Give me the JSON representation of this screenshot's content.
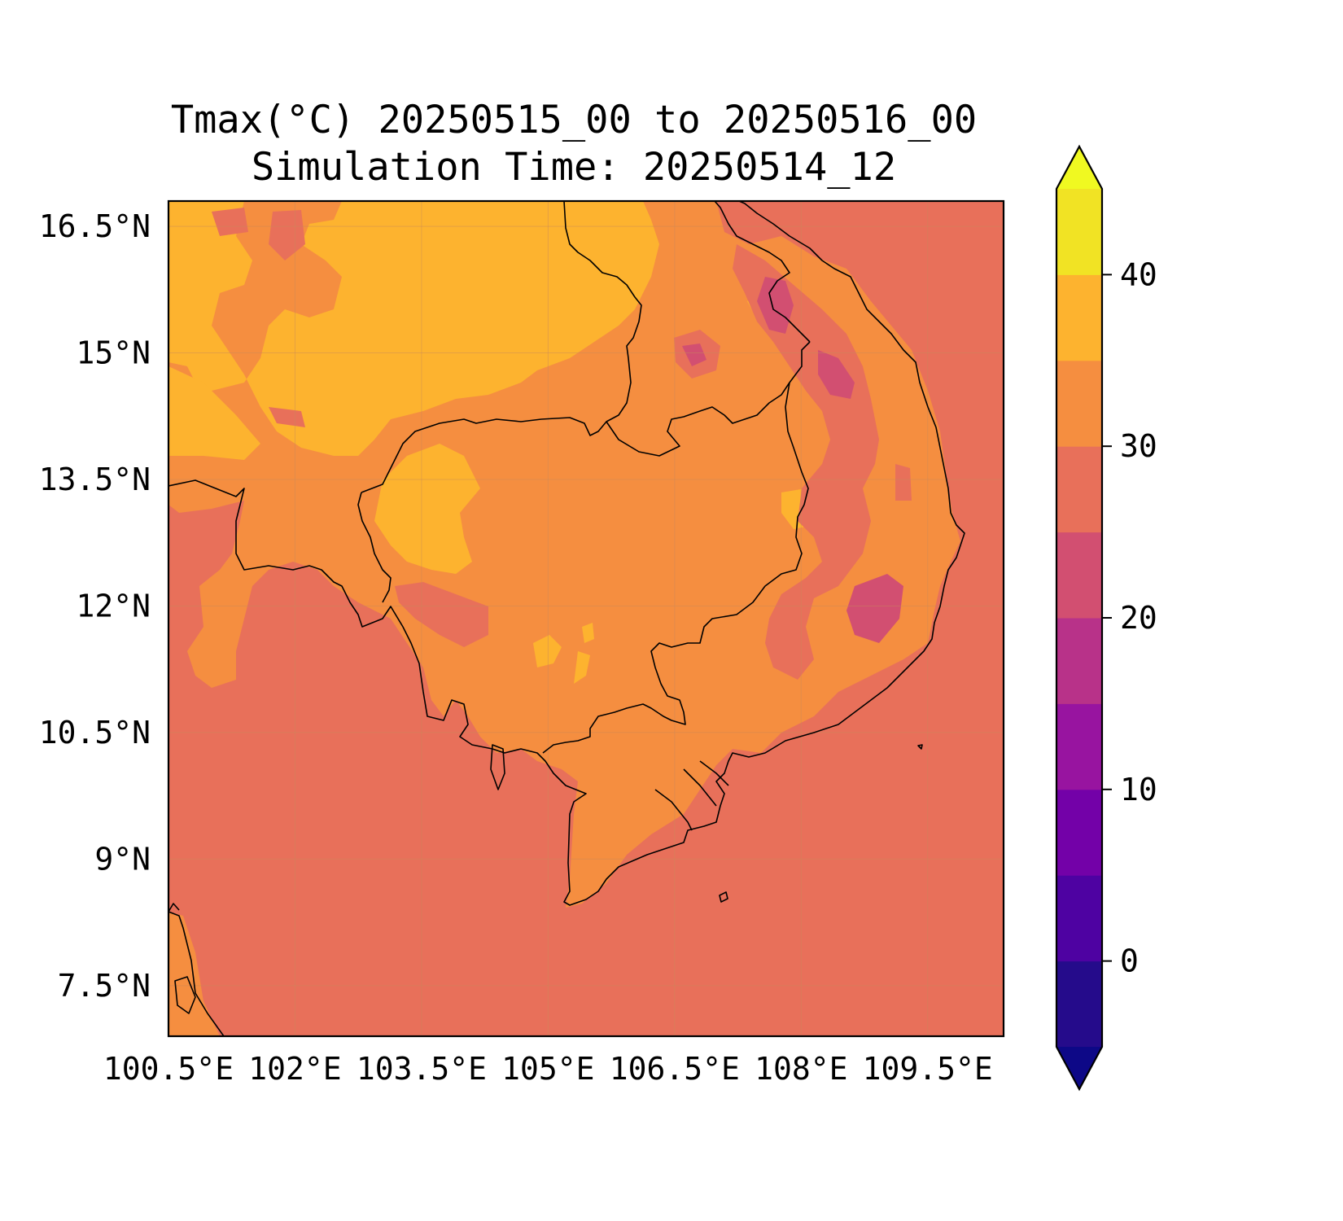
{
  "chart_data": {
    "type": "filled-contour-map",
    "title_line1": "Tmax(°C) 20250515_00 to 20250516_00",
    "title_line2": "Simulation Time: 20250514_12",
    "lon_range": [
      100.5,
      110.4
    ],
    "lat_range": [
      6.9,
      16.8
    ],
    "x_ticks": [
      "100.5°E",
      "102°E",
      "103.5°E",
      "105°E",
      "106.5°E",
      "108°E",
      "109.5°E"
    ],
    "x_tick_values": [
      100.5,
      102,
      103.5,
      105,
      106.5,
      108,
      109.5
    ],
    "y_ticks": [
      "16.5°N",
      "15°N",
      "13.5°N",
      "12°N",
      "10.5°N",
      "9°N",
      "7.5°N"
    ],
    "y_tick_values": [
      16.5,
      15,
      13.5,
      12,
      10.5,
      9,
      7.5
    ],
    "colorbar": {
      "levels": [
        -5,
        0,
        5,
        10,
        15,
        20,
        25,
        30,
        35,
        40,
        45
      ],
      "colors": [
        "#250b8b",
        "#4e02a2",
        "#7301a8",
        "#9814a0",
        "#b83289",
        "#d24f71",
        "#e8705a",
        "#f58e40",
        "#fdb32f",
        "#f1e324"
      ],
      "under_color": "#0d0887",
      "over_color": "#f0f921",
      "extend": "both",
      "tick_labels": [
        "0",
        "10",
        "20",
        "30",
        "40"
      ],
      "tick_values": [
        0,
        10,
        20,
        30,
        40
      ]
    },
    "grid": true,
    "ocean_value_range": [
      25,
      30
    ],
    "land_value_range": [
      30,
      35
    ]
  }
}
